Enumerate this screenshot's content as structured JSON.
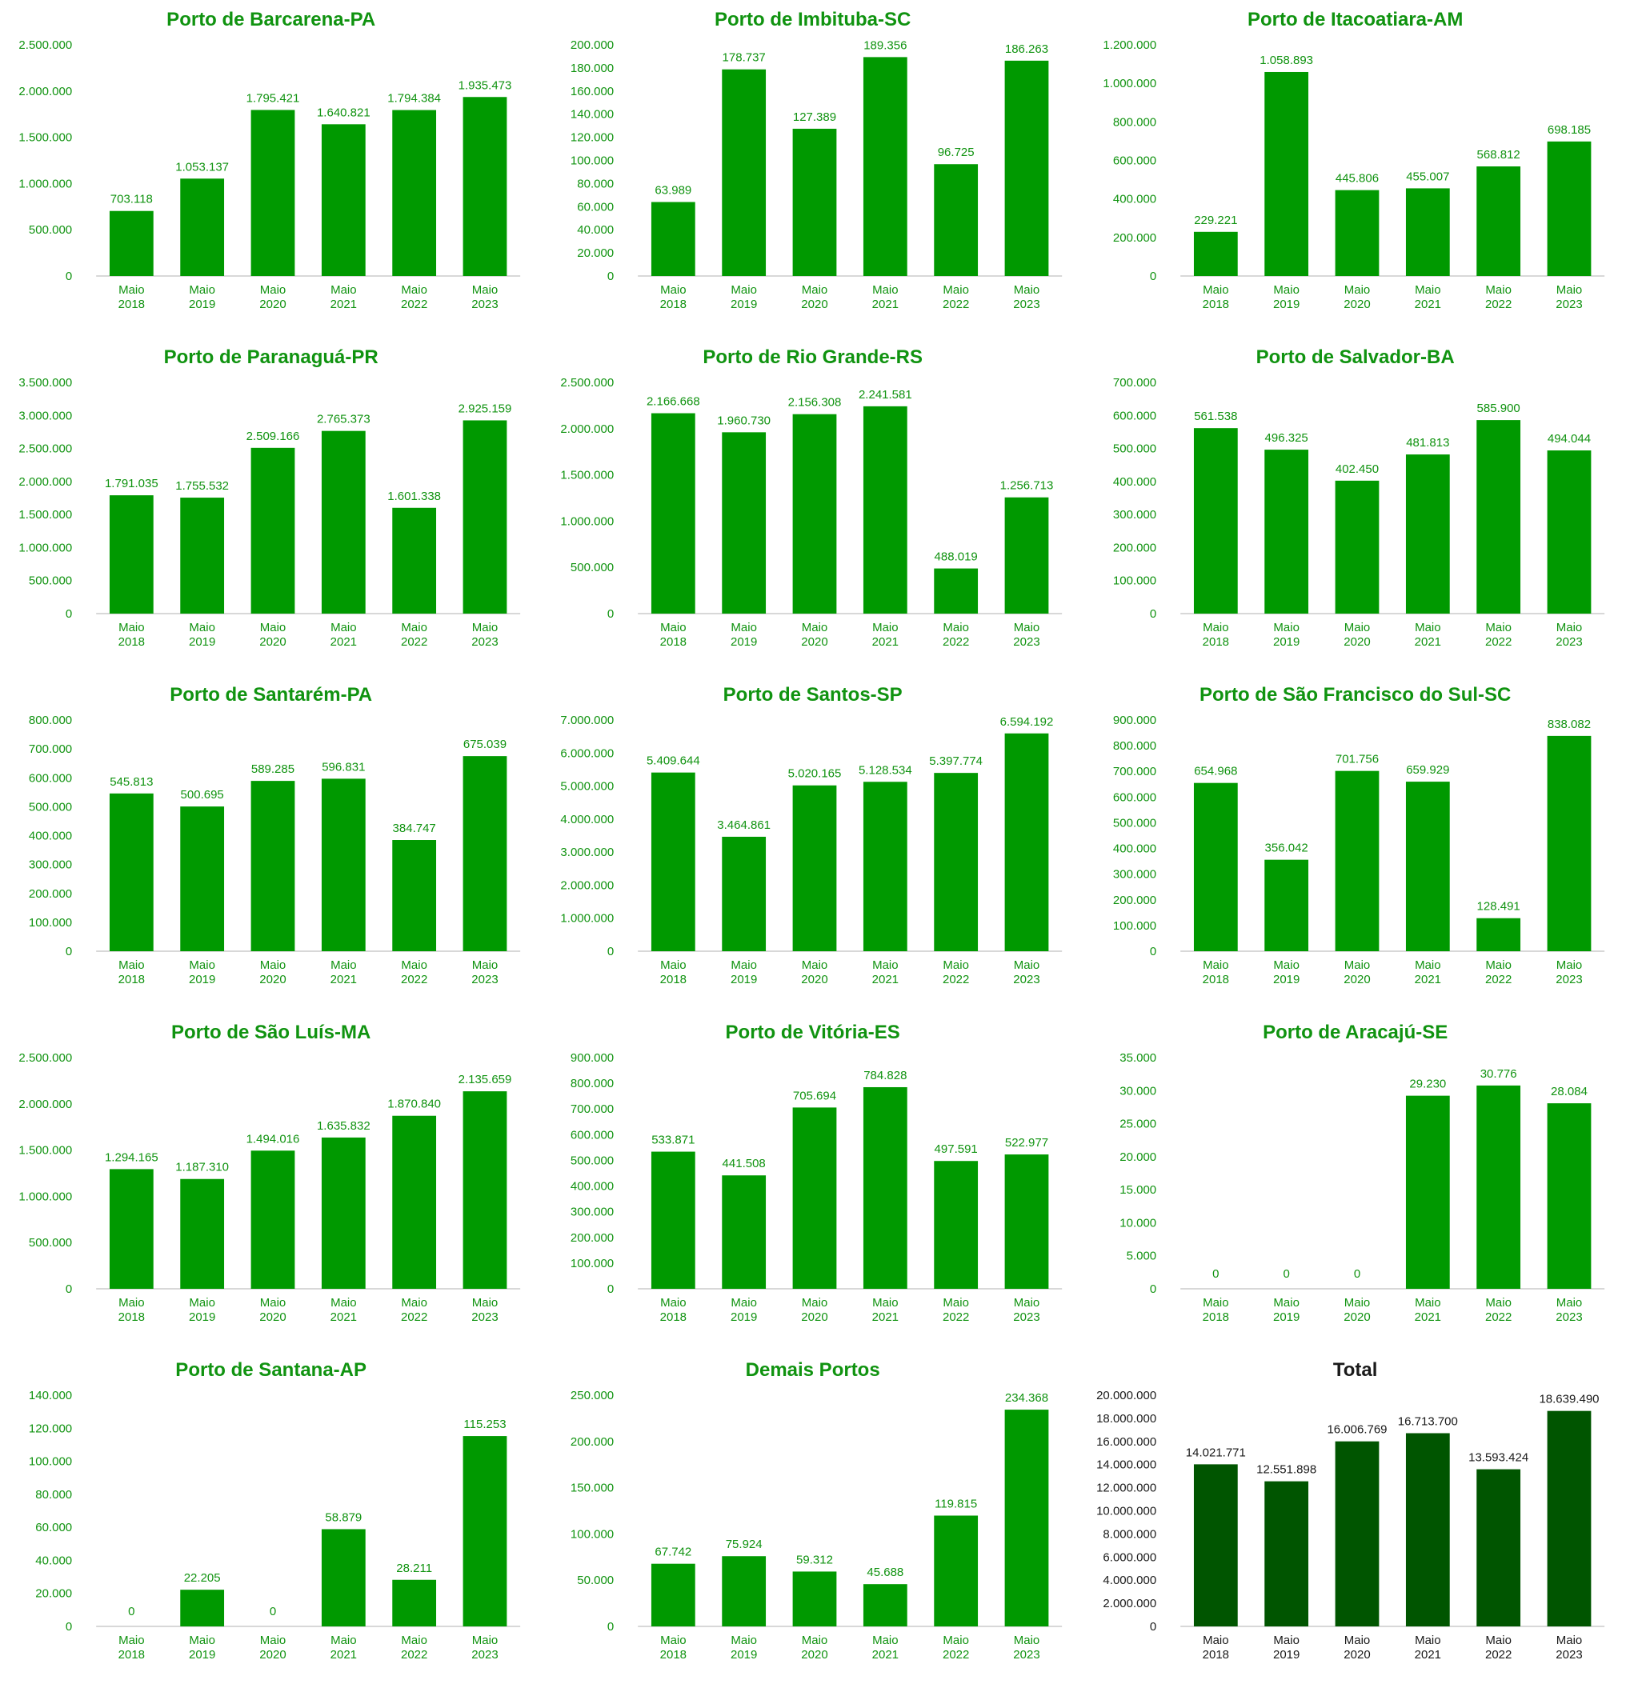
{
  "colors": {
    "bar": "#009900",
    "bar_total": "#005500",
    "text": "#109310",
    "text_total": "#1a1a1a",
    "axis": "#cccccc"
  },
  "chart_data": [
    {
      "type": "bar",
      "title": "Porto de Barcarena-PA",
      "categories": [
        "Maio 2018",
        "Maio 2019",
        "Maio 2020",
        "Maio 2021",
        "Maio 2022",
        "Maio 2023"
      ],
      "values": [
        703118,
        1053137,
        1795421,
        1640821,
        1794384,
        1935473
      ],
      "value_labels": [
        "703.118",
        "1.053.137",
        "1.795.421",
        "1.640.821",
        "1.794.384",
        "1.935.473"
      ],
      "yticks": [
        "0",
        "500.000",
        "1.000.000",
        "1.500.000",
        "2.000.000",
        "2.500.000"
      ],
      "ylim": [
        0,
        2500000
      ],
      "grid": false
    },
    {
      "type": "bar",
      "title": "Porto de Imbituba-SC",
      "categories": [
        "Maio 2018",
        "Maio 2019",
        "Maio 2020",
        "Maio 2021",
        "Maio 2022",
        "Maio 2023"
      ],
      "values": [
        63989,
        178737,
        127389,
        189356,
        96725,
        186263
      ],
      "value_labels": [
        "63.989",
        "178.737",
        "127.389",
        "189.356",
        "96.725",
        "186.263"
      ],
      "yticks": [
        "0",
        "20.000",
        "40.000",
        "60.000",
        "80.000",
        "100.000",
        "120.000",
        "140.000",
        "160.000",
        "180.000",
        "200.000"
      ],
      "ylim": [
        0,
        200000
      ],
      "grid": false
    },
    {
      "type": "bar",
      "title": "Porto de Itacoatiara-AM",
      "categories": [
        "Maio 2018",
        "Maio 2019",
        "Maio 2020",
        "Maio 2021",
        "Maio 2022",
        "Maio 2023"
      ],
      "values": [
        229221,
        1058893,
        445806,
        455007,
        568812,
        698185
      ],
      "value_labels": [
        "229.221",
        "1.058.893",
        "445.806",
        "455.007",
        "568.812",
        "698.185"
      ],
      "yticks": [
        "0",
        "200.000",
        "400.000",
        "600.000",
        "800.000",
        "1.000.000",
        "1.200.000"
      ],
      "ylim": [
        0,
        1200000
      ],
      "grid": false
    },
    {
      "type": "bar",
      "title": "Porto de Paranaguá-PR",
      "categories": [
        "Maio 2018",
        "Maio 2019",
        "Maio 2020",
        "Maio 2021",
        "Maio 2022",
        "Maio 2023"
      ],
      "values": [
        1791035,
        1755532,
        2509166,
        2765373,
        1601338,
        2925159
      ],
      "value_labels": [
        "1.791.035",
        "1.755.532",
        "2.509.166",
        "2.765.373",
        "1.601.338",
        "2.925.159"
      ],
      "yticks": [
        "0",
        "500.000",
        "1.000.000",
        "1.500.000",
        "2.000.000",
        "2.500.000",
        "3.000.000",
        "3.500.000"
      ],
      "ylim": [
        0,
        3500000
      ],
      "grid": false
    },
    {
      "type": "bar",
      "title": "Porto de Rio Grande-RS",
      "categories": [
        "Maio 2018",
        "Maio 2019",
        "Maio 2020",
        "Maio 2021",
        "Maio 2022",
        "Maio 2023"
      ],
      "values": [
        2166668,
        1960730,
        2156308,
        2241581,
        488019,
        1256713
      ],
      "value_labels": [
        "2.166.668",
        "1.960.730",
        "2.156.308",
        "2.241.581",
        "488.019",
        "1.256.713"
      ],
      "yticks": [
        "0",
        "500.000",
        "1.000.000",
        "1.500.000",
        "2.000.000",
        "2.500.000"
      ],
      "ylim": [
        0,
        2500000
      ],
      "grid": false
    },
    {
      "type": "bar",
      "title": "Porto de Salvador-BA",
      "categories": [
        "Maio 2018",
        "Maio 2019",
        "Maio 2020",
        "Maio 2021",
        "Maio 2022",
        "Maio 2023"
      ],
      "values": [
        561538,
        496325,
        402450,
        481813,
        585900,
        494044
      ],
      "value_labels": [
        "561.538",
        "496.325",
        "402.450",
        "481.813",
        "585.900",
        "494.044"
      ],
      "yticks": [
        "0",
        "100.000",
        "200.000",
        "300.000",
        "400.000",
        "500.000",
        "600.000",
        "700.000"
      ],
      "ylim": [
        0,
        700000
      ],
      "grid": false
    },
    {
      "type": "bar",
      "title": "Porto de Santarém-PA",
      "categories": [
        "Maio 2018",
        "Maio 2019",
        "Maio 2020",
        "Maio 2021",
        "Maio 2022",
        "Maio 2023"
      ],
      "values": [
        545813,
        500695,
        589285,
        596831,
        384747,
        675039
      ],
      "value_labels": [
        "545.813",
        "500.695",
        "589.285",
        "596.831",
        "384.747",
        "675.039"
      ],
      "yticks": [
        "0",
        "100.000",
        "200.000",
        "300.000",
        "400.000",
        "500.000",
        "600.000",
        "700.000",
        "800.000"
      ],
      "ylim": [
        0,
        800000
      ],
      "grid": false
    },
    {
      "type": "bar",
      "title": "Porto de Santos-SP",
      "categories": [
        "Maio 2018",
        "Maio 2019",
        "Maio 2020",
        "Maio 2021",
        "Maio 2022",
        "Maio 2023"
      ],
      "values": [
        5409644,
        3464861,
        5020165,
        5128534,
        5397774,
        6594192
      ],
      "value_labels": [
        "5.409.644",
        "3.464.861",
        "5.020.165",
        "5.128.534",
        "5.397.774",
        "6.594.192"
      ],
      "yticks": [
        "0",
        "1.000.000",
        "2.000.000",
        "3.000.000",
        "4.000.000",
        "5.000.000",
        "6.000.000",
        "7.000.000"
      ],
      "ylim": [
        0,
        7000000
      ],
      "grid": false
    },
    {
      "type": "bar",
      "title": "Porto de São Francisco do Sul-SC",
      "categories": [
        "Maio 2018",
        "Maio 2019",
        "Maio 2020",
        "Maio 2021",
        "Maio 2022",
        "Maio 2023"
      ],
      "values": [
        654968,
        356042,
        701756,
        659929,
        128491,
        838082
      ],
      "value_labels": [
        "654.968",
        "356.042",
        "701.756",
        "659.929",
        "128.491",
        "838.082"
      ],
      "yticks": [
        "0",
        "100.000",
        "200.000",
        "300.000",
        "400.000",
        "500.000",
        "600.000",
        "700.000",
        "800.000",
        "900.000"
      ],
      "ylim": [
        0,
        900000
      ],
      "grid": false
    },
    {
      "type": "bar",
      "title": "Porto de São Luís-MA",
      "categories": [
        "Maio 2018",
        "Maio 2019",
        "Maio 2020",
        "Maio 2021",
        "Maio 2022",
        "Maio 2023"
      ],
      "values": [
        1294165,
        1187310,
        1494016,
        1635832,
        1870840,
        2135659
      ],
      "value_labels": [
        "1.294.165",
        "1.187.310",
        "1.494.016",
        "1.635.832",
        "1.870.840",
        "2.135.659"
      ],
      "yticks": [
        "0",
        "500.000",
        "1.000.000",
        "1.500.000",
        "2.000.000",
        "2.500.000"
      ],
      "ylim": [
        0,
        2500000
      ],
      "grid": false
    },
    {
      "type": "bar",
      "title": "Porto de Vitória-ES",
      "categories": [
        "Maio 2018",
        "Maio 2019",
        "Maio 2020",
        "Maio 2021",
        "Maio 2022",
        "Maio 2023"
      ],
      "values": [
        533871,
        441508,
        705694,
        784828,
        497591,
        522977
      ],
      "value_labels": [
        "533.871",
        "441.508",
        "705.694",
        "784.828",
        "497.591",
        "522.977"
      ],
      "yticks": [
        "0",
        "100.000",
        "200.000",
        "300.000",
        "400.000",
        "500.000",
        "600.000",
        "700.000",
        "800.000",
        "900.000"
      ],
      "ylim": [
        0,
        900000
      ],
      "grid": false
    },
    {
      "type": "bar",
      "title": "Porto de Aracajú-SE",
      "categories": [
        "Maio 2018",
        "Maio 2019",
        "Maio 2020",
        "Maio 2021",
        "Maio 2022",
        "Maio 2023"
      ],
      "values": [
        0,
        0,
        0,
        29230,
        30776,
        28084
      ],
      "value_labels": [
        "0",
        "0",
        "0",
        "29.230",
        "30.776",
        "28.084"
      ],
      "yticks": [
        "0",
        "5.000",
        "10.000",
        "15.000",
        "20.000",
        "25.000",
        "30.000",
        "35.000"
      ],
      "ylim": [
        0,
        35000
      ],
      "grid": false
    },
    {
      "type": "bar",
      "title": "Porto de Santana-AP",
      "categories": [
        "Maio 2018",
        "Maio 2019",
        "Maio 2020",
        "Maio 2021",
        "Maio 2022",
        "Maio 2023"
      ],
      "values": [
        0,
        22205,
        0,
        58879,
        28211,
        115253
      ],
      "value_labels": [
        "0",
        "22.205",
        "0",
        "58.879",
        "28.211",
        "115.253"
      ],
      "yticks": [
        "0",
        "20.000",
        "40.000",
        "60.000",
        "80.000",
        "100.000",
        "120.000",
        "140.000"
      ],
      "ylim": [
        0,
        140000
      ],
      "grid": false
    },
    {
      "type": "bar",
      "title": "Demais Portos",
      "categories": [
        "Maio 2018",
        "Maio 2019",
        "Maio 2020",
        "Maio 2021",
        "Maio 2022",
        "Maio 2023"
      ],
      "values": [
        67742,
        75924,
        59312,
        45688,
        119815,
        234368
      ],
      "value_labels": [
        "67.742",
        "75.924",
        "59.312",
        "45.688",
        "119.815",
        "234.368"
      ],
      "yticks": [
        "0",
        "50.000",
        "100.000",
        "150.000",
        "200.000",
        "250.000"
      ],
      "ylim": [
        0,
        250000
      ],
      "grid": false
    },
    {
      "type": "bar",
      "title": "Total",
      "categories": [
        "Maio 2018",
        "Maio 2019",
        "Maio 2020",
        "Maio 2021",
        "Maio 2022",
        "Maio 2023"
      ],
      "values": [
        14021771,
        12551898,
        16006769,
        16713700,
        13593424,
        18639490
      ],
      "value_labels": [
        "14.021.771",
        "12.551.898",
        "16.006.769",
        "16.713.700",
        "13.593.424",
        "18.639.490"
      ],
      "yticks": [
        "0",
        "2.000.000",
        "4.000.000",
        "6.000.000",
        "8.000.000",
        "10.000.000",
        "12.000.000",
        "14.000.000",
        "16.000.000",
        "18.000.000",
        "20.000.000"
      ],
      "ylim": [
        0,
        20000000
      ],
      "grid": false,
      "dark": true
    }
  ]
}
